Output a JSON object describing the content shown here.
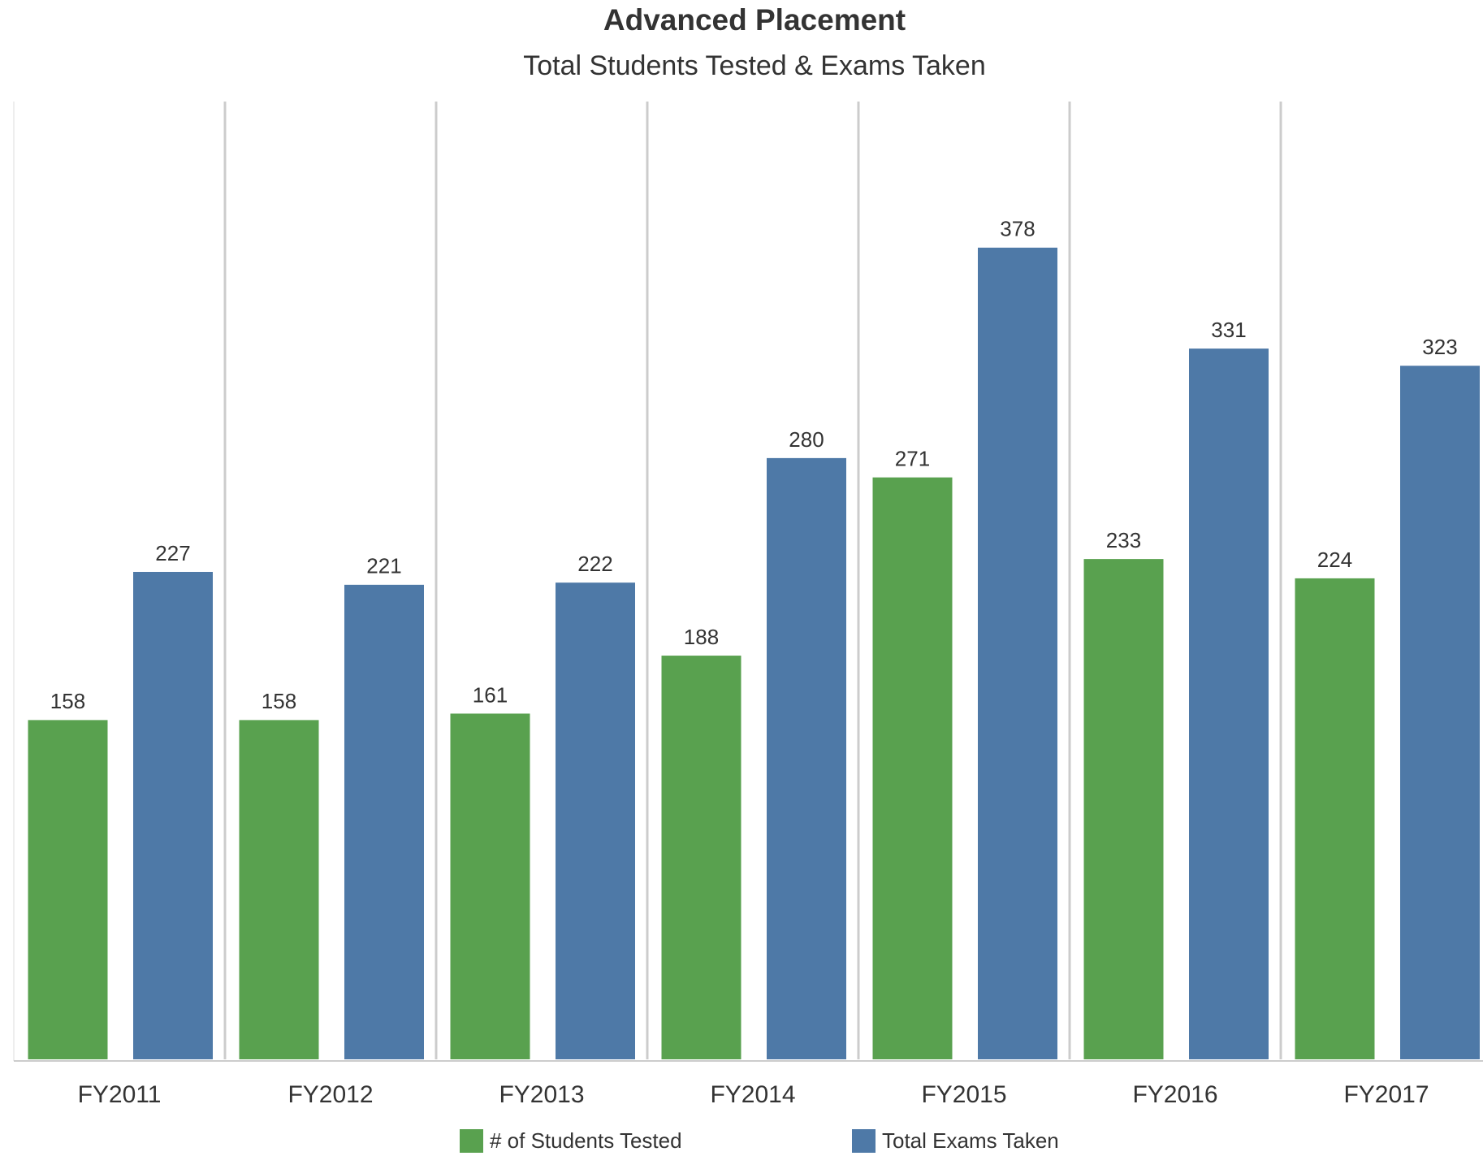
{
  "chart_data": {
    "type": "bar",
    "title": "Advanced Placement",
    "subtitle": "Total Students Tested & Exams Taken",
    "categories": [
      "FY2011",
      "FY2012",
      "FY2013",
      "FY2014",
      "FY2015",
      "FY2016",
      "FY2017"
    ],
    "series": [
      {
        "name": "# of Students Tested",
        "color": "#59a14f",
        "values": [
          158,
          158,
          161,
          188,
          271,
          233,
          224
        ]
      },
      {
        "name": "Total Exams Taken",
        "color": "#4e79a7",
        "values": [
          227,
          221,
          222,
          280,
          378,
          331,
          323
        ]
      }
    ]
  }
}
